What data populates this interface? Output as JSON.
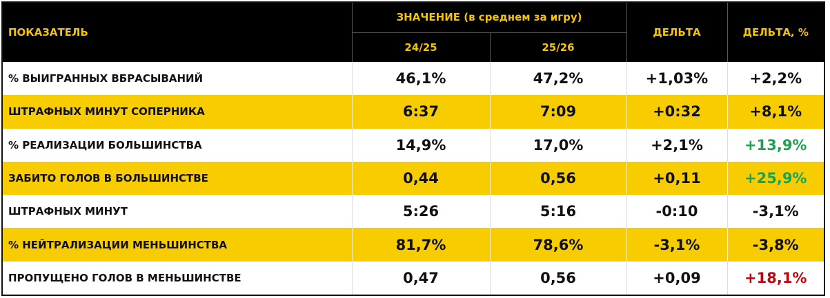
{
  "header": {
    "indicator": "ПОКАЗАТЕЛЬ",
    "value_group": "ЗНАЧЕНИЕ (в среднем за игру)",
    "season_a": "24/25",
    "season_b": "25/26",
    "delta": "ДЕЛЬТА",
    "delta_pct": "ДЕЛЬТА, %"
  },
  "colors": {
    "accent_yellow": "#f7cc00",
    "header_bg": "#000000",
    "positive": "#1fa24f",
    "negative": "#c0070f"
  },
  "rows": [
    {
      "label": "% ВЫИГРАННЫХ ВБРАСЫВАНИЙ",
      "a": "46,1%",
      "b": "47,2%",
      "delta": "+1,03%",
      "delta_pct": "+2,2%",
      "tone": ""
    },
    {
      "label": "ШТРАФНЫХ МИНУТ СОПЕРНИКА",
      "a": "6:37",
      "b": "7:09",
      "delta": "+0:32",
      "delta_pct": "+8,1%",
      "tone": ""
    },
    {
      "label": "% РЕАЛИЗАЦИИ БОЛЬШИНСТВА",
      "a": "14,9%",
      "b": "17,0%",
      "delta": "+2,1%",
      "delta_pct": "+13,9%",
      "tone": "green"
    },
    {
      "label": "ЗАБИТО ГОЛОВ В БОЛЬШИНСТВЕ",
      "a": "0,44",
      "b": "0,56",
      "delta": "+0,11",
      "delta_pct": "+25,9%",
      "tone": "green"
    },
    {
      "label": "ШТРАФНЫХ МИНУТ",
      "a": "5:26",
      "b": "5:16",
      "delta": "-0:10",
      "delta_pct": "-3,1%",
      "tone": ""
    },
    {
      "label": "% НЕЙТРАЛИЗАЦИИ МЕНЬШИНСТВА",
      "a": "81,7%",
      "b": "78,6%",
      "delta": "-3,1%",
      "delta_pct": "-3,8%",
      "tone": ""
    },
    {
      "label": "ПРОПУЩЕНО ГОЛОВ В МЕНЬШИНСТВЕ",
      "a": "0,47",
      "b": "0,56",
      "delta": "+0,09",
      "delta_pct": "+18,1%",
      "tone": "red"
    }
  ]
}
